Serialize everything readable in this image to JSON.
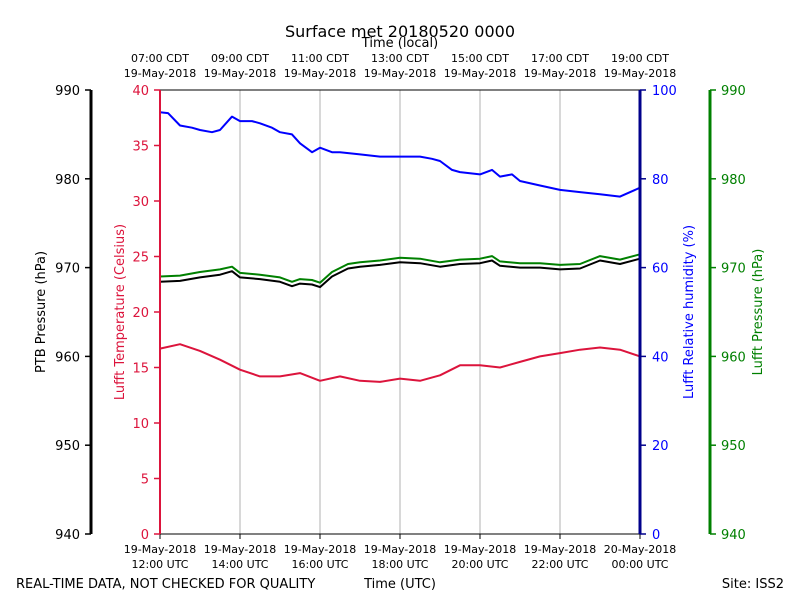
{
  "chart_data": {
    "type": "line",
    "title": "Surface met 20180520 0000",
    "top_axis_title": "Time (local)",
    "xlabel": "Time (UTC)",
    "footer_left": "REAL-TIME DATA, NOT CHECKED FOR QUALITY",
    "footer_right": "Site: ISS2",
    "colors": {
      "ptb": "#000000",
      "temp": "#dc143c",
      "rh": "#0000ff",
      "lufft_p": "#008000",
      "grid": "#b0b0b0"
    },
    "x_ticks_bottom": [
      [
        "19-May-2018",
        "12:00 UTC"
      ],
      [
        "19-May-2018",
        "14:00 UTC"
      ],
      [
        "19-May-2018",
        "16:00 UTC"
      ],
      [
        "19-May-2018",
        "18:00 UTC"
      ],
      [
        "19-May-2018",
        "20:00 UTC"
      ],
      [
        "19-May-2018",
        "22:00 UTC"
      ],
      [
        "20-May-2018",
        "00:00 UTC"
      ]
    ],
    "x_ticks_top": [
      [
        "07:00 CDT",
        "19-May-2018"
      ],
      [
        "09:00 CDT",
        "19-May-2018"
      ],
      [
        "11:00 CDT",
        "19-May-2018"
      ],
      [
        "13:00 CDT",
        "19-May-2018"
      ],
      [
        "15:00 CDT",
        "19-May-2018"
      ],
      [
        "17:00 CDT",
        "19-May-2018"
      ],
      [
        "19:00 CDT",
        "19-May-2018"
      ]
    ],
    "xlim_hours_utc": [
      12,
      24
    ],
    "axes": {
      "ptb": {
        "label": "PTB Pressure (hPa)",
        "ylim": [
          940,
          990
        ],
        "ticks": [
          940,
          950,
          960,
          970,
          980,
          990
        ]
      },
      "temp": {
        "label": "Lufft Temperature (Celsius)",
        "ylim": [
          0,
          40
        ],
        "ticks": [
          0,
          5,
          10,
          15,
          20,
          25,
          30,
          35,
          40
        ]
      },
      "rh": {
        "label": "Lufft Relative humidity (%)",
        "ylim": [
          0,
          100
        ],
        "ticks": [
          0,
          20,
          40,
          60,
          80,
          100
        ]
      },
      "lufft_p": {
        "label": "Lufft Pressure (hPa)",
        "ylim": [
          940,
          990
        ],
        "ticks": [
          940,
          950,
          960,
          970,
          980,
          990
        ]
      }
    },
    "series": [
      {
        "name": "PTB Pressure",
        "axis": "ptb",
        "x": [
          12.0,
          12.5,
          13.0,
          13.5,
          13.8,
          14.0,
          14.5,
          15.0,
          15.3,
          15.5,
          15.8,
          16.0,
          16.3,
          16.7,
          17.0,
          17.5,
          18.0,
          18.5,
          19.0,
          19.5,
          20.0,
          20.3,
          20.5,
          21.0,
          21.5,
          22.0,
          22.5,
          23.0,
          23.5,
          24.0
        ],
        "values": [
          968.4,
          968.5,
          968.9,
          969.2,
          969.6,
          968.9,
          968.7,
          968.4,
          967.9,
          968.2,
          968.1,
          967.8,
          969.0,
          969.9,
          970.1,
          970.3,
          970.6,
          970.5,
          970.1,
          970.4,
          970.5,
          970.8,
          970.2,
          970.0,
          970.0,
          969.8,
          969.9,
          970.8,
          970.4,
          971.0
        ]
      },
      {
        "name": "Lufft Temperature",
        "axis": "temp",
        "x": [
          12.0,
          12.5,
          13.0,
          13.5,
          14.0,
          14.5,
          15.0,
          15.5,
          16.0,
          16.5,
          17.0,
          17.5,
          18.0,
          18.5,
          19.0,
          19.5,
          20.0,
          20.5,
          21.0,
          21.5,
          22.0,
          22.5,
          23.0,
          23.5,
          24.0
        ],
        "values": [
          16.7,
          17.1,
          16.5,
          15.7,
          14.8,
          14.2,
          14.2,
          14.5,
          13.8,
          14.2,
          13.8,
          13.7,
          14.0,
          13.8,
          14.3,
          15.2,
          15.2,
          15.0,
          15.5,
          16.0,
          16.3,
          16.6,
          16.8,
          16.6,
          16.0
        ]
      },
      {
        "name": "Lufft Relative humidity",
        "axis": "rh",
        "x": [
          12.0,
          12.2,
          12.5,
          12.8,
          13.0,
          13.3,
          13.5,
          13.8,
          14.0,
          14.3,
          14.5,
          14.8,
          15.0,
          15.3,
          15.5,
          15.8,
          16.0,
          16.3,
          16.5,
          17.0,
          17.5,
          18.0,
          18.5,
          18.8,
          19.0,
          19.3,
          19.5,
          20.0,
          20.3,
          20.5,
          20.8,
          21.0,
          21.5,
          22.0,
          22.5,
          23.0,
          23.5,
          24.0
        ],
        "values": [
          95.0,
          94.8,
          92.0,
          91.5,
          91.0,
          90.5,
          91.0,
          94.0,
          93.0,
          93.0,
          92.5,
          91.5,
          90.5,
          90.0,
          88.0,
          86.0,
          87.0,
          86.0,
          86.0,
          85.5,
          85.0,
          85.0,
          85.0,
          84.5,
          84.0,
          82.0,
          81.5,
          81.0,
          82.0,
          80.5,
          81.0,
          79.5,
          78.5,
          77.5,
          77.0,
          76.5,
          76.0,
          78.0
        ]
      },
      {
        "name": "Lufft Pressure",
        "axis": "lufft_p",
        "x": [
          12.0,
          12.5,
          13.0,
          13.5,
          13.8,
          14.0,
          14.5,
          15.0,
          15.3,
          15.5,
          15.8,
          16.0,
          16.3,
          16.7,
          17.0,
          17.5,
          18.0,
          18.5,
          19.0,
          19.5,
          20.0,
          20.3,
          20.5,
          21.0,
          21.5,
          22.0,
          22.5,
          23.0,
          23.5,
          24.0
        ],
        "values": [
          969.0,
          969.1,
          969.5,
          969.8,
          970.1,
          969.4,
          969.2,
          968.9,
          968.4,
          968.7,
          968.6,
          968.3,
          969.5,
          970.4,
          970.6,
          970.8,
          971.1,
          971.0,
          970.6,
          970.9,
          971.0,
          971.3,
          970.7,
          970.5,
          970.5,
          970.3,
          970.4,
          971.3,
          970.9,
          971.5
        ]
      }
    ]
  }
}
